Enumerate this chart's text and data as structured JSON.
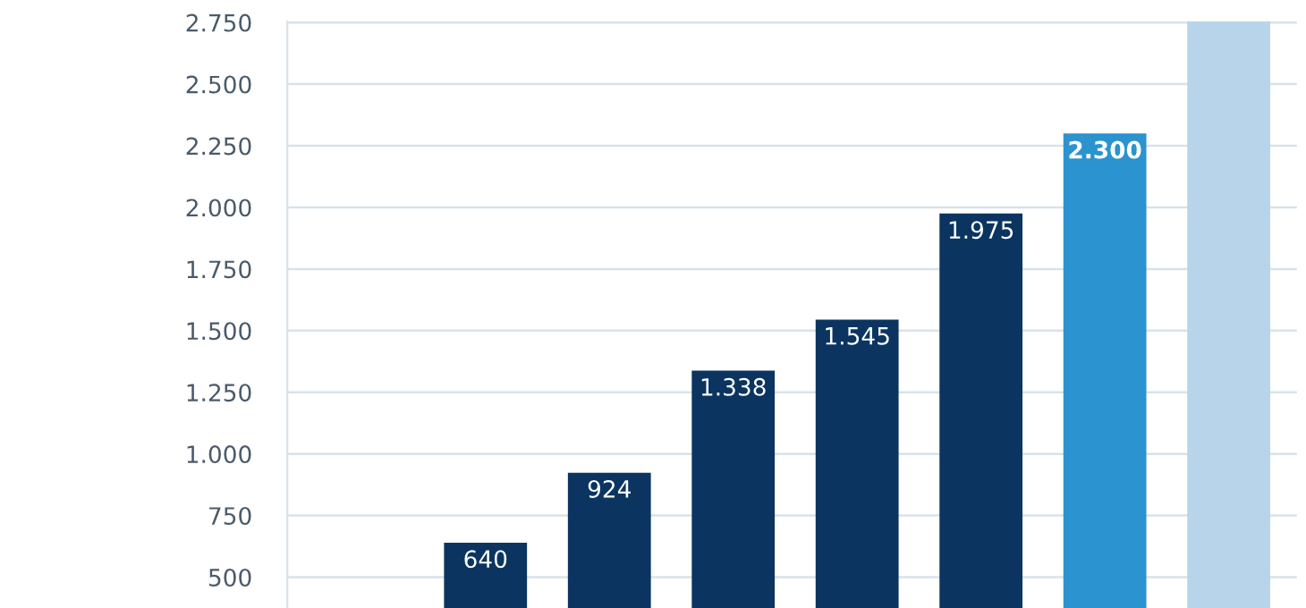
{
  "chart_data": {
    "type": "bar",
    "categories": [
      null,
      null,
      null,
      null,
      null,
      null,
      null,
      null
    ],
    "values": [
      null,
      640,
      924,
      1338,
      1545,
      1975,
      2300,
      2755
    ],
    "colors": [
      "#0b3560",
      "#0b3560",
      "#0b3560",
      "#0b3560",
      "#0b3560",
      "#0b3560",
      "#2b93cf",
      "#b8d4ea"
    ],
    "value_labels": [
      null,
      "640",
      "924",
      "1.338",
      "1.545",
      "1.975",
      "2.300",
      null
    ],
    "ylim": [
      375,
      2755
    ],
    "yticks": [
      {
        "value": 500,
        "label": "500"
      },
      {
        "value": 750,
        "label": "750"
      },
      {
        "value": 1000,
        "label": "1.000"
      },
      {
        "value": 1250,
        "label": "1.250"
      },
      {
        "value": 1500,
        "label": "1.500"
      },
      {
        "value": 1750,
        "label": "1.750"
      },
      {
        "value": 2000,
        "label": "2.000"
      },
      {
        "value": 2250,
        "label": "2.250"
      },
      {
        "value": 2500,
        "label": "2.500"
      },
      {
        "value": 2750,
        "label": "2.750"
      }
    ],
    "grid": "y"
  }
}
